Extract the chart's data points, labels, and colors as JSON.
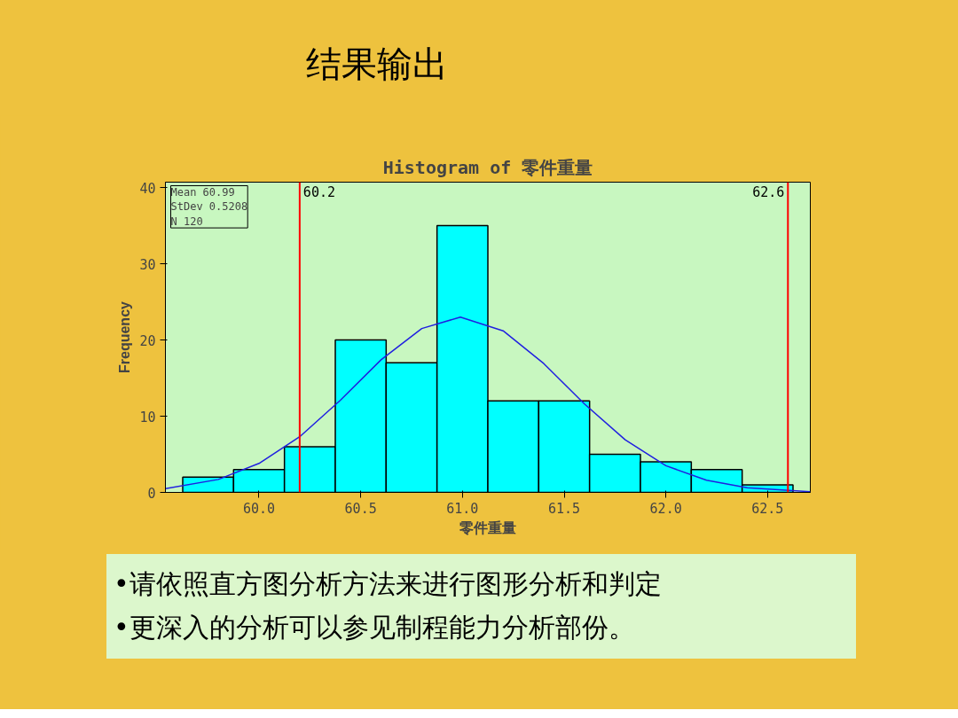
{
  "chart_data": {
    "type": "histogram",
    "title": "结果输出",
    "subtitle": "Histogram of 零件重量",
    "xlabel": "零件重量",
    "ylabel": "Frequency",
    "bins": [
      59.625,
      59.875,
      60.125,
      60.375,
      60.625,
      60.875,
      61.125,
      61.375,
      61.625,
      61.875,
      62.125,
      62.375,
      62.625
    ],
    "values": [
      2,
      3,
      6,
      20,
      17,
      35,
      12,
      12,
      5,
      4,
      3,
      1
    ],
    "color": "#00ffff",
    "series": [
      {
        "type": "line",
        "color": "#2020e0",
        "x": [
          59.54,
          59.8,
          60.0,
          60.2,
          60.4,
          60.6,
          60.8,
          60.99,
          61.2,
          61.4,
          61.6,
          61.8,
          62.0,
          62.2,
          62.4,
          62.71
        ],
        "values": [
          0.5,
          1.7,
          3.8,
          7.3,
          12.1,
          17.4,
          21.5,
          23,
          21.2,
          16.9,
          11.6,
          6.9,
          3.5,
          1.6,
          0.6,
          0.1
        ]
      }
    ],
    "xlim": [
      59.54,
      62.71
    ],
    "ylim": [
      0,
      40.7
    ],
    "xticks": [
      {
        "value": 60.0,
        "label": "60.0"
      },
      {
        "value": 60.5,
        "label": "60.5"
      },
      {
        "value": 61.0,
        "label": "61.0"
      },
      {
        "value": 61.5,
        "label": "61.5"
      },
      {
        "value": 62.0,
        "label": "62.0"
      },
      {
        "value": 62.5,
        "label": "62.5"
      }
    ],
    "yticks": [
      0,
      10,
      20,
      30,
      40
    ],
    "ref_lines": [
      {
        "axis": "x",
        "value": 60.2,
        "label": "60.2",
        "color": "#ff0000"
      },
      {
        "axis": "x",
        "value": 62.6,
        "label": "62.6",
        "color": "#ff0000"
      }
    ],
    "annotations": [
      "Mean 60.99\nStDev 0.5208\nN 120",
      "•请依照直方图分析方法来进行图形分析和判定",
      "•更深入的分析可以参见制程能力分析部份。"
    ],
    "grid": false
  }
}
